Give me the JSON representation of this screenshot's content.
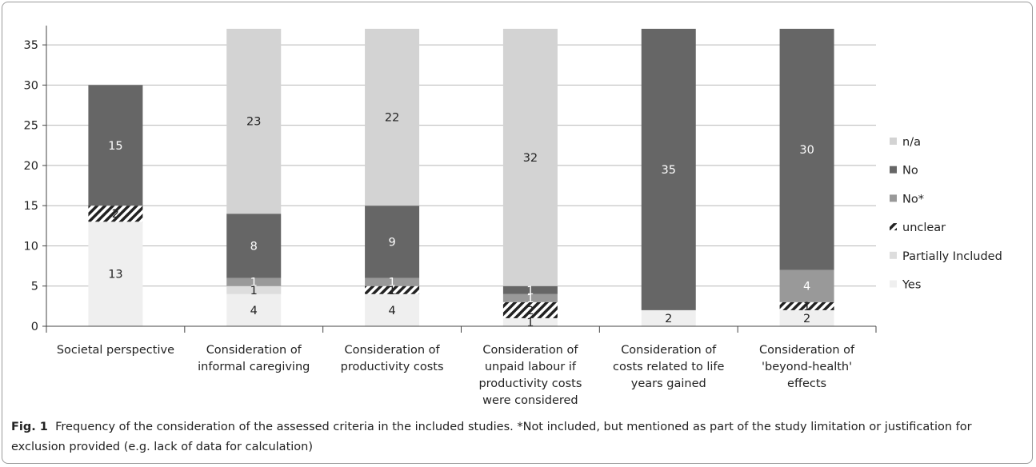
{
  "chart_data": {
    "type": "bar",
    "stacked": true,
    "categories": [
      "Societal perspective",
      "Consideration of informal caregiving",
      "Consideration of productivity costs",
      "Consideration of unpaid labour if productivity costs were considered",
      "Consideration of costs related to life years gained",
      "Consideration of 'beyond-health' effects"
    ],
    "category_lines": [
      [
        "Societal perspective"
      ],
      [
        "Consideration of",
        "informal caregiving"
      ],
      [
        "Consideration of",
        "productivity costs"
      ],
      [
        "Consideration of",
        "unpaid labour if",
        "productivity costs",
        "were considered"
      ],
      [
        "Consideration of",
        "costs related to life",
        "years gained"
      ],
      [
        "Consideration of",
        "'beyond-health'",
        "effects"
      ]
    ],
    "series": [
      {
        "name": "Yes",
        "values": [
          13,
          4,
          4,
          1,
          2,
          2
        ],
        "color": "#efefef"
      },
      {
        "name": "Partially Included",
        "values": [
          0,
          1,
          0,
          0,
          0,
          0
        ],
        "color": "#dddddd"
      },
      {
        "name": "unclear",
        "values": [
          2,
          0,
          1,
          2,
          0,
          1
        ],
        "color": "hatch"
      },
      {
        "name": "No*",
        "values": [
          0,
          1,
          1,
          1,
          0,
          4
        ],
        "color": "#999999"
      },
      {
        "name": "No",
        "values": [
          15,
          8,
          9,
          1,
          35,
          30
        ],
        "color": "#666666"
      },
      {
        "name": "n/a",
        "values": [
          0,
          23,
          22,
          32,
          0,
          0
        ],
        "color": "#d3d3d3"
      }
    ],
    "value_labels": [
      [
        {
          "s": 0,
          "t": "13"
        },
        {
          "s": 2,
          "t": "2"
        },
        {
          "s": 4,
          "t": "15"
        }
      ],
      [
        {
          "s": 0,
          "t": "4"
        },
        {
          "s": 1,
          "t": "1"
        },
        {
          "s": 3,
          "t": "1"
        },
        {
          "s": 4,
          "t": "8"
        },
        {
          "s": 5,
          "t": "23"
        }
      ],
      [
        {
          "s": 0,
          "t": "4"
        },
        {
          "s": 2,
          "t": "1"
        },
        {
          "s": 3,
          "t": "1"
        },
        {
          "s": 4,
          "t": "9"
        },
        {
          "s": 5,
          "t": "22"
        }
      ],
      [
        {
          "s": 0,
          "t": "1"
        },
        {
          "s": 2,
          "t": "2"
        },
        {
          "s": 3,
          "t": "1"
        },
        {
          "s": 4,
          "t": "1"
        },
        {
          "s": 5,
          "t": "32"
        }
      ],
      [
        {
          "s": 0,
          "t": "2"
        },
        {
          "s": 4,
          "t": "35"
        }
      ],
      [
        {
          "s": 0,
          "t": "2"
        },
        {
          "s": 2,
          "t": "1"
        },
        {
          "s": 3,
          "t": "4"
        },
        {
          "s": 4,
          "t": "30"
        }
      ]
    ],
    "legend_order": [
      "n/a",
      "No",
      "No*",
      "unclear",
      "Partially Included",
      "Yes"
    ],
    "ylim": [
      0,
      37
    ],
    "yticks": [
      0,
      5,
      10,
      15,
      20,
      25,
      30,
      35
    ],
    "grid": true,
    "legend_position": "right"
  },
  "caption": {
    "label": "Fig. 1",
    "text": "Frequency of the consideration of the assessed criteria in the included studies. *Not included, but mentioned as part of the study limitation or justification for exclusion provided (e.g. lack of data for calculation)"
  }
}
